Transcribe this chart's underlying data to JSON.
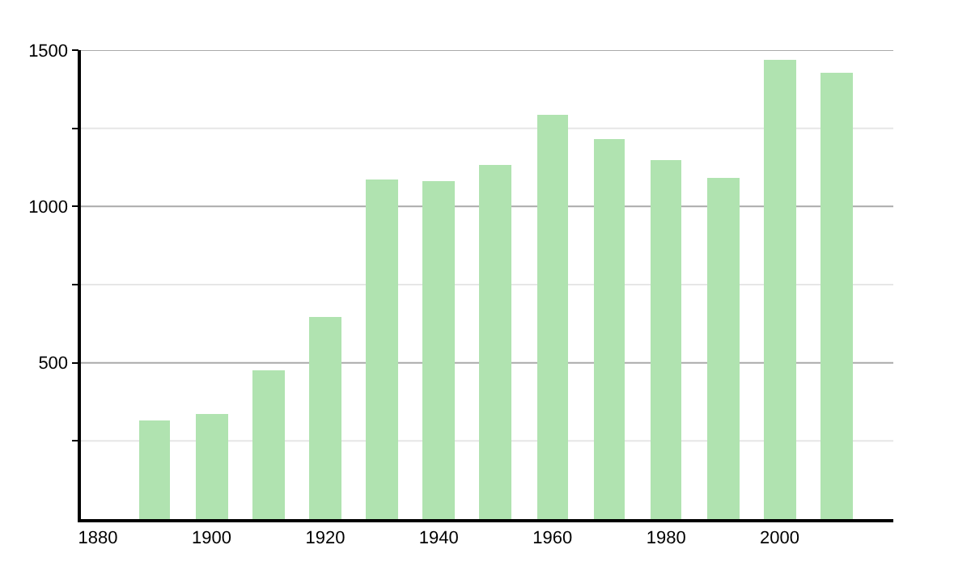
{
  "chart_data": {
    "type": "bar",
    "x": [
      1890,
      1900,
      1910,
      1920,
      1930,
      1940,
      1950,
      1960,
      1970,
      1980,
      1990,
      2000,
      2010
    ],
    "values": [
      315,
      336,
      477,
      647,
      1086,
      1083,
      1131,
      1291,
      1214,
      1147,
      1090,
      1469,
      1427
    ],
    "color": "#b0e3b0",
    "xlim": [
      1877,
      2020
    ],
    "xticks": [
      1880,
      1900,
      1920,
      1940,
      1960,
      1980,
      2000
    ],
    "ylim": [
      0,
      1500
    ],
    "yticks": [
      {
        "value": 250,
        "label": null
      },
      500,
      {
        "value": 750,
        "label": null
      },
      1000,
      {
        "value": 1250,
        "label": null
      },
      1500
    ],
    "grid": "y"
  }
}
